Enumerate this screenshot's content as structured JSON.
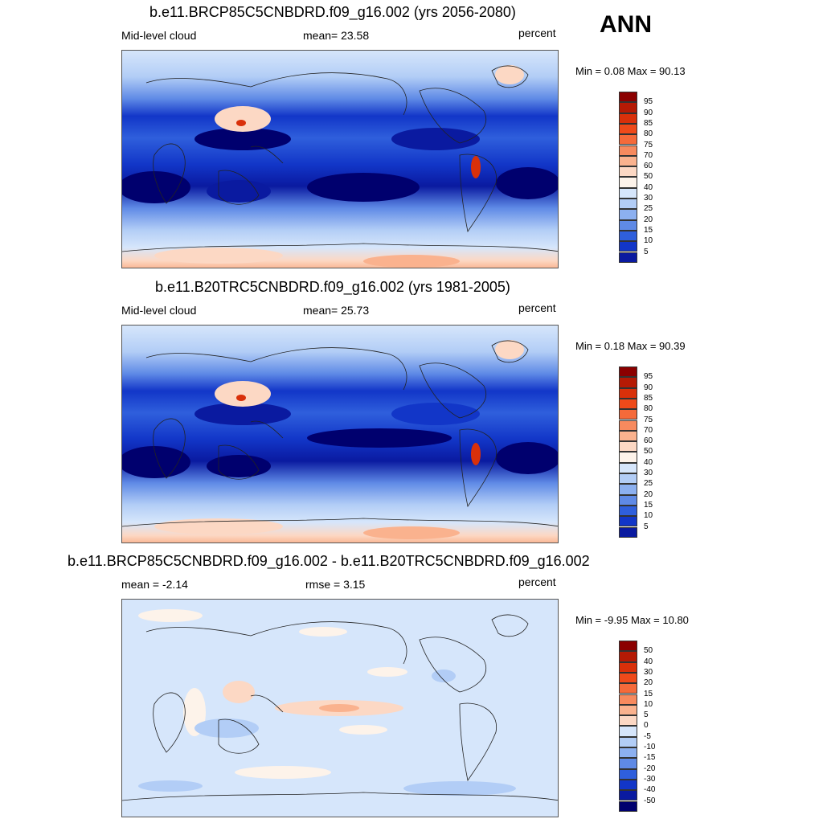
{
  "season": "ANN",
  "colors": {
    "map_ocean_low": "#0a1a8c",
    "coast": "#222222"
  },
  "panels": [
    {
      "title": "b.e11.BRCP85C5CNBDRD.f09_g16.002 (yrs 2056-2080)",
      "left_label": "Mid-level cloud",
      "center_label": "mean=  23.58",
      "units": "percent",
      "minmax": "Min =   0.08 Max =  90.13",
      "kind": "abs"
    },
    {
      "title": "b.e11.B20TRC5CNBDRD.f09_g16.002 (yrs 1981-2005)",
      "left_label": "Mid-level cloud",
      "center_label": "mean=  25.73",
      "units": "percent",
      "minmax": "Min =   0.18 Max =  90.39",
      "kind": "abs"
    },
    {
      "title": "b.e11.BRCP85C5CNBDRD.f09_g16.002 - b.e11.B20TRC5CNBDRD.f09_g16.002",
      "left_label": "mean =  -2.14",
      "center_label": "rmse =   3.15",
      "units": "percent",
      "minmax": "Min =  -9.95 Max =  10.80",
      "kind": "diff"
    }
  ],
  "legend_abs": {
    "labels": [
      "95",
      "90",
      "85",
      "80",
      "75",
      "70",
      "60",
      "50",
      "40",
      "30",
      "25",
      "20",
      "15",
      "10",
      "5"
    ],
    "colors": [
      "#8b0000",
      "#b51a05",
      "#d9300a",
      "#ef4a1a",
      "#f56a3a",
      "#f78a5e",
      "#fab28e",
      "#fcd8c4",
      "#fdf3ea",
      "#d6e6fb",
      "#b2cdf6",
      "#8cb0f0",
      "#5f8ae6",
      "#2f5fdc",
      "#1236c8",
      "#0a1aa0"
    ]
  },
  "legend_diff": {
    "labels": [
      "50",
      "40",
      "30",
      "20",
      "15",
      "10",
      "5",
      "0",
      "-5",
      "-10",
      "-15",
      "-20",
      "-30",
      "-40",
      "-50"
    ],
    "colors": [
      "#8b0000",
      "#b51a05",
      "#d9300a",
      "#ef4a1a",
      "#f56a3a",
      "#f78a5e",
      "#fab28e",
      "#fcd8c4",
      "#d6e6fb",
      "#b2cdf6",
      "#8cb0f0",
      "#5f8ae6",
      "#2f5fdc",
      "#1236c8",
      "#0a1aa0",
      "#00006e"
    ]
  }
}
